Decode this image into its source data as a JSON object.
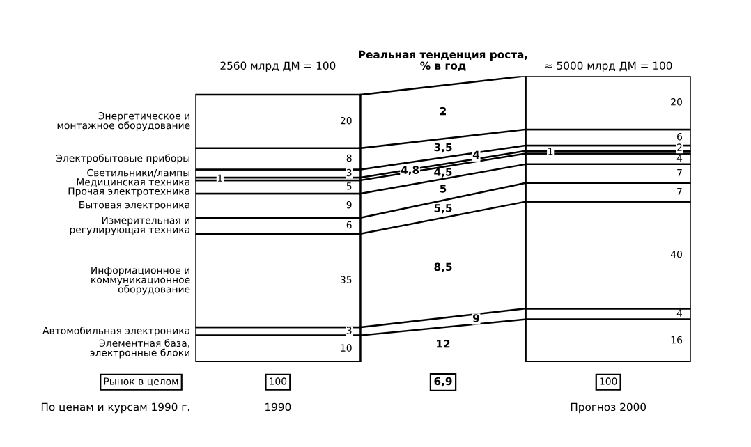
{
  "chart_data": {
    "type": "bar",
    "stacked": true,
    "data_labels": true,
    "title": "Реальная тенденция роста,\n% в год",
    "categories": [
      "1990",
      "Прогноз 2000"
    ],
    "series": [
      {
        "name": "Элементная база,\nэлектронные блоки",
        "color": "#ffffff",
        "values": [
          10,
          16
        ]
      },
      {
        "name": "Автомобильная электроника",
        "color": "#ffffff",
        "values": [
          3,
          4
        ]
      },
      {
        "name": "Информационное и\nкоммуникационное\nоборудование",
        "color": "#ffffff",
        "values": [
          35,
          40
        ]
      },
      {
        "name": "Измерительная и\nрегулирующая техника",
        "color": "#ffffff",
        "values": [
          6,
          7
        ]
      },
      {
        "name": "Бытовая электроника",
        "color": "#ffffff",
        "values": [
          9,
          7
        ]
      },
      {
        "name": "Прочая электротехника",
        "color": "#ffffff",
        "values": [
          5,
          4
        ]
      },
      {
        "name": "Медицинская техника",
        "color": "#ffffff",
        "values": [
          1,
          1
        ]
      },
      {
        "name": "Светильники/лампы",
        "color": "#ffffff",
        "values": [
          3,
          2
        ]
      },
      {
        "name": "Электробытовые приборы",
        "color": "#ffffff",
        "values": [
          8,
          6
        ]
      },
      {
        "name": "Энергетическое и\nмонтажное оборудование",
        "color": "#ffffff",
        "values": [
          20,
          20
        ]
      }
    ],
    "annotations": [
      "2560 млрд ДМ = 100",
      "≈ 5000 млрд ДМ = 100",
      "Рынок в целом",
      "6,9",
      "По ценам и курсам 1990 г.",
      "12",
      "9",
      "8,5",
      "5,5",
      "5",
      "4,5",
      "4,8",
      "4",
      "3,5",
      "2",
      "100",
      "100"
    ]
  }
}
